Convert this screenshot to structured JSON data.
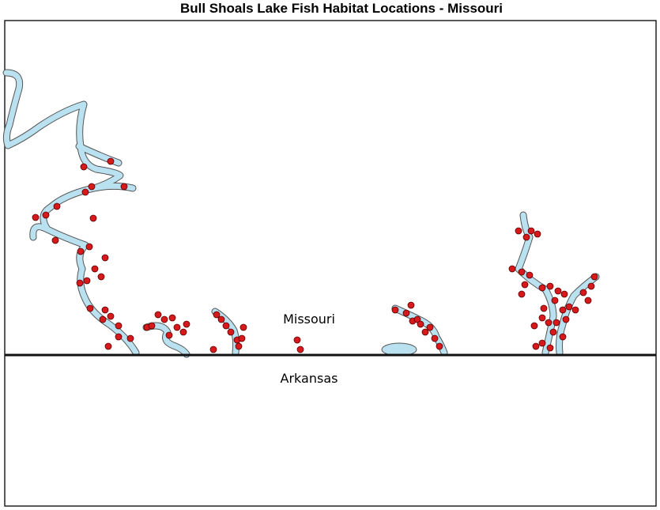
{
  "title": "Bull Shoals Lake Fish Habitat Locations - Missouri",
  "labels": {
    "north": "Missouri",
    "south": "Arkansas"
  }
}
